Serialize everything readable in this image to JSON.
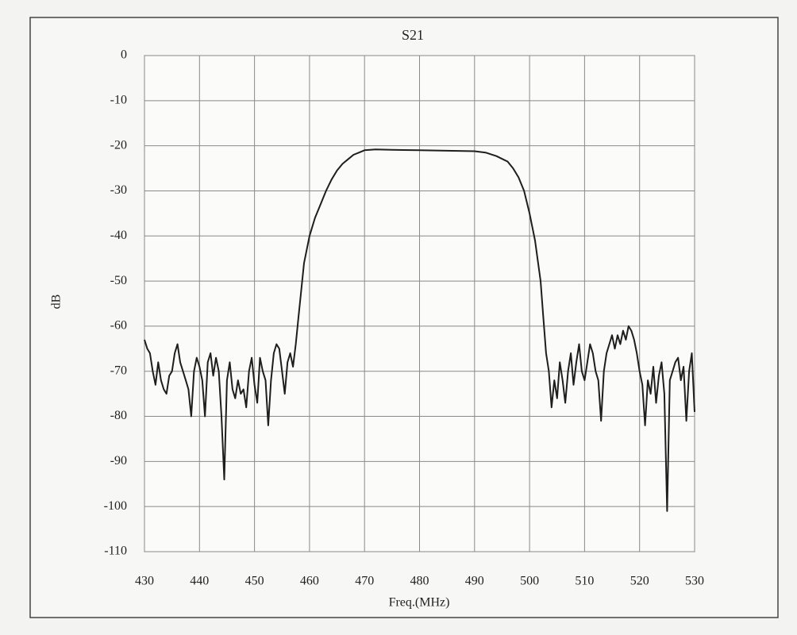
{
  "chart_data": {
    "type": "line",
    "title": "S21",
    "xlabel": "Freq.(MHz)",
    "ylabel": "dB",
    "x": [
      430,
      430.5,
      431,
      431.5,
      432,
      432.5,
      433,
      433.5,
      434,
      434.5,
      435,
      435.5,
      436,
      436.5,
      437,
      437.5,
      438,
      438.5,
      439,
      439.5,
      440,
      440.5,
      441,
      441.5,
      442,
      442.5,
      443,
      443.5,
      444,
      444.5,
      445,
      445.5,
      446,
      446.5,
      447,
      447.5,
      448,
      448.5,
      449,
      449.5,
      450,
      450.5,
      451,
      451.5,
      452,
      452.5,
      453,
      453.5,
      454,
      454.5,
      455,
      455.5,
      456,
      456.5,
      457,
      457.5,
      458,
      458.5,
      459,
      460,
      461,
      462,
      463,
      464,
      465,
      466,
      467,
      468,
      469,
      470,
      472,
      475,
      480,
      485,
      490,
      492,
      494,
      496,
      497,
      498,
      499,
      500,
      501,
      502,
      502.5,
      503,
      503.5,
      504,
      504.5,
      505,
      505.5,
      506,
      506.5,
      507,
      507.5,
      508,
      508.5,
      509,
      509.5,
      510,
      510.5,
      511,
      511.5,
      512,
      512.5,
      513,
      513.5,
      514,
      514.5,
      515,
      515.5,
      516,
      516.5,
      517,
      517.5,
      518,
      518.5,
      519,
      519.5,
      520,
      520.5,
      521,
      521.5,
      522,
      522.5,
      523,
      523.5,
      524,
      524.5,
      525,
      525.5,
      526,
      526.5,
      527,
      527.5,
      528,
      528.5,
      529,
      529.5,
      530
    ],
    "series": [
      {
        "name": "S21",
        "color": "#1e1e1e",
        "values": [
          -63,
          -65,
          -66,
          -70,
          -73,
          -68,
          -72,
          -74,
          -75,
          -71,
          -70,
          -66,
          -64,
          -68,
          -70,
          -72,
          -74,
          -80,
          -70,
          -67,
          -69,
          -72,
          -80,
          -68,
          -66,
          -71,
          -67,
          -70,
          -80,
          -94,
          -72,
          -68,
          -74,
          -76,
          -72,
          -75,
          -74,
          -78,
          -70,
          -67,
          -73,
          -77,
          -67,
          -70,
          -72,
          -82,
          -72,
          -66,
          -64,
          -65,
          -70,
          -75,
          -68,
          -66,
          -69,
          -64,
          -58,
          -52,
          -46,
          -40,
          -36,
          -33,
          -30,
          -27.5,
          -25.5,
          -24,
          -23,
          -22,
          -21.5,
          -21,
          -20.8,
          -20.9,
          -21,
          -21.1,
          -21.2,
          -21.5,
          -22.3,
          -23.5,
          -25,
          -27,
          -30,
          -35,
          -41,
          -50,
          -58,
          -66,
          -70,
          -78,
          -72,
          -76,
          -68,
          -72,
          -77,
          -70,
          -66,
          -73,
          -68,
          -64,
          -70,
          -72,
          -68,
          -64,
          -66,
          -70,
          -72,
          -81,
          -70,
          -66,
          -64,
          -62,
          -65,
          -62,
          -64,
          -61,
          -63,
          -60,
          -61,
          -63,
          -66,
          -70,
          -73,
          -82,
          -72,
          -75,
          -69,
          -77,
          -71,
          -68,
          -75,
          -101,
          -72,
          -70,
          -68,
          -67,
          -72,
          -69,
          -81,
          -70,
          -66,
          -79
        ]
      }
    ],
    "xlim": [
      430,
      530
    ],
    "xticks": [
      430,
      440,
      450,
      460,
      470,
      480,
      490,
      500,
      510,
      520,
      530
    ],
    "ylim": [
      -110,
      0
    ],
    "yticks": [
      0,
      -10,
      -20,
      -30,
      -40,
      -50,
      -60,
      -70,
      -80,
      -90,
      -100,
      -110
    ],
    "grid": true
  }
}
